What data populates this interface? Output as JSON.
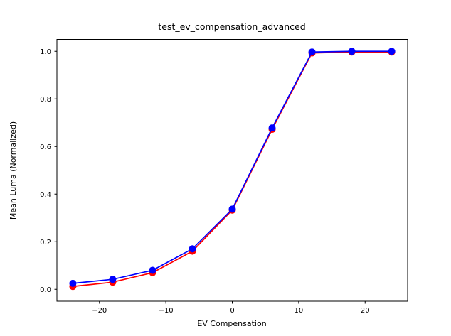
{
  "chart_data": {
    "type": "line",
    "title": "test_ev_compensation_advanced",
    "xlabel": "EV Compensation",
    "ylabel": "Mean Luma (Normalized)",
    "x": [
      -24,
      -18,
      -12,
      -6,
      0,
      6,
      12,
      18,
      24
    ],
    "series": [
      {
        "name": "red-series",
        "color": "#ff0000",
        "marker": "circle",
        "values": [
          0.012,
          0.03,
          0.07,
          0.16,
          0.333,
          0.672,
          0.993,
          0.997,
          0.997
        ]
      },
      {
        "name": "blue-series",
        "color": "#0000ff",
        "marker": "circle",
        "values": [
          0.025,
          0.042,
          0.08,
          0.17,
          0.337,
          0.678,
          0.997,
          1.0,
          1.0
        ]
      }
    ],
    "xlim": [
      -26.4,
      26.4
    ],
    "ylim": [
      -0.05,
      1.05
    ],
    "xticks": [
      -20,
      -10,
      0,
      10,
      20
    ],
    "yticks": [
      0.0,
      0.2,
      0.4,
      0.6,
      0.8,
      1.0
    ],
    "grid": false,
    "legend": null,
    "axis_color": "#000000",
    "background": "#ffffff"
  }
}
